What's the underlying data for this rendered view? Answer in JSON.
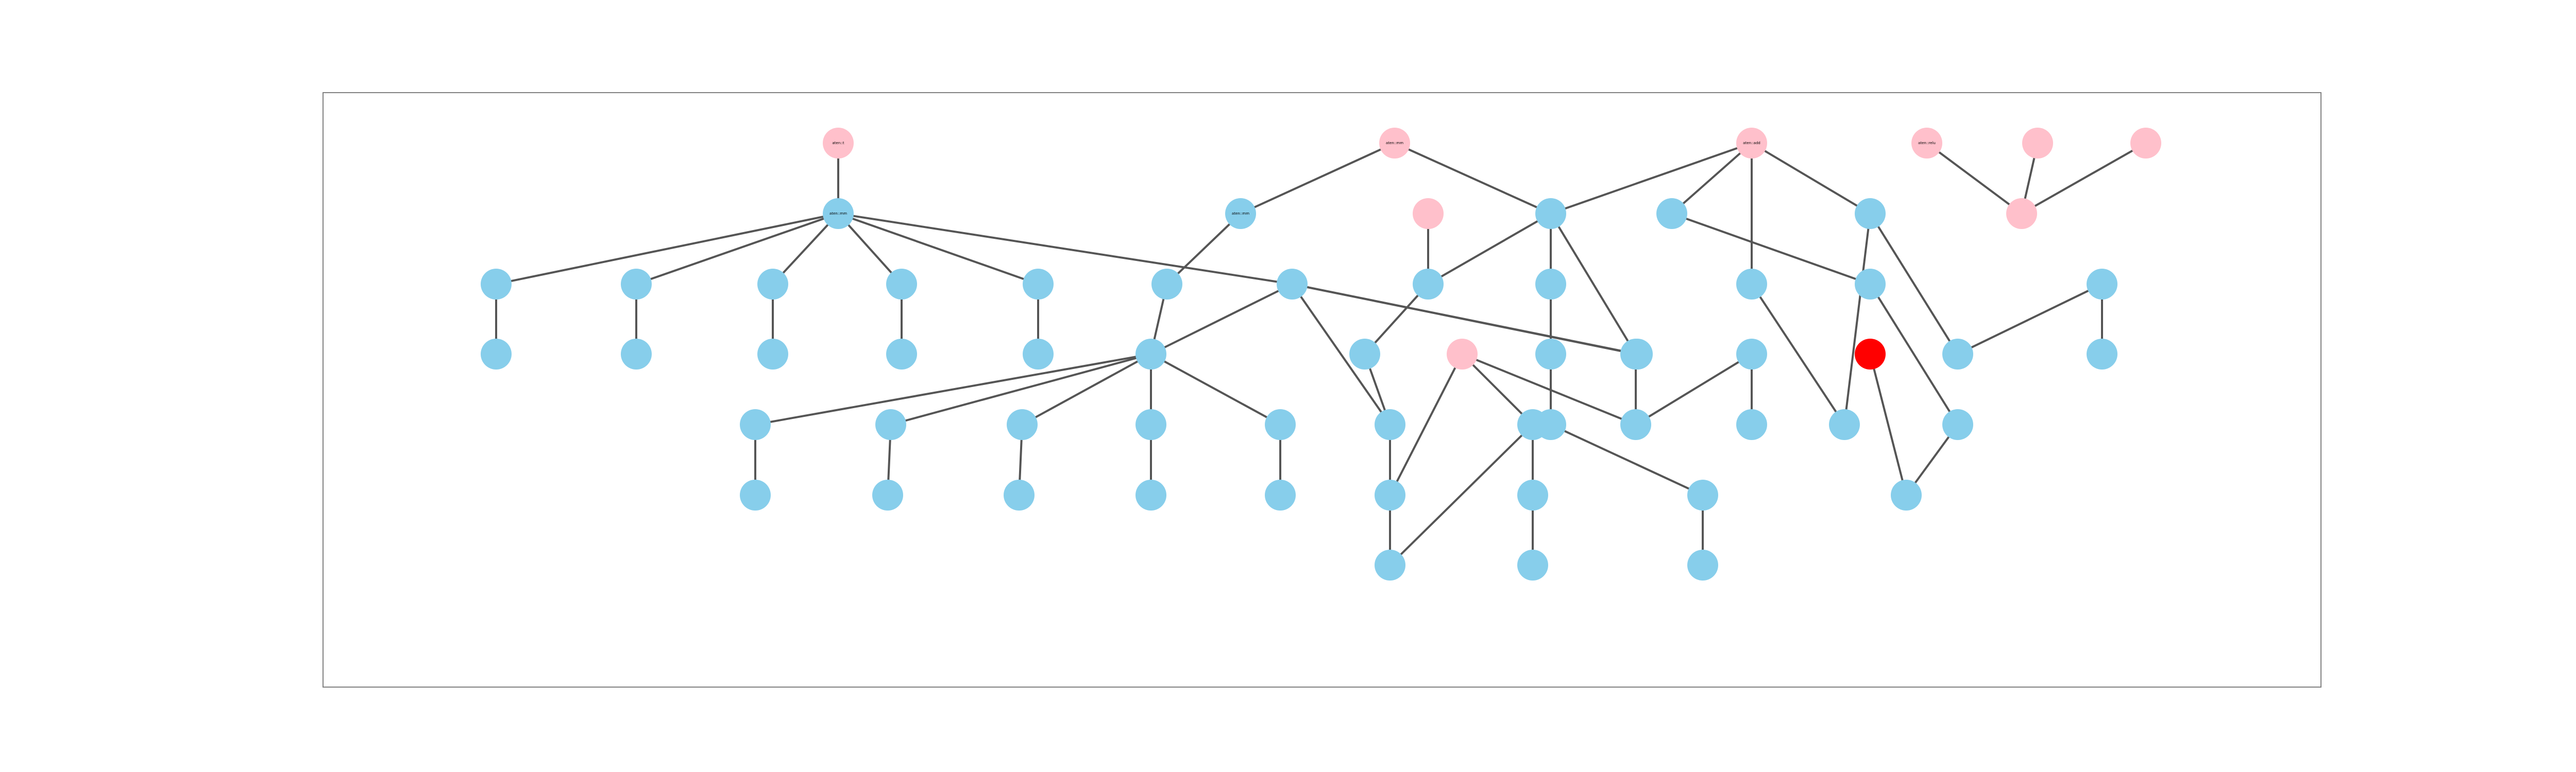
{
  "colors": {
    "default_node": "#87ceeb",
    "input_node": "#ffc0cb",
    "highlight_node": "#ff0000",
    "edge": "#555555",
    "frame": "#808080"
  },
  "nodes": [
    {
      "id": "n01",
      "label": "aten::t",
      "role": "input"
    },
    {
      "id": "n02",
      "label": "aten::mm",
      "role": "input"
    },
    {
      "id": "n03",
      "label": "aten::add",
      "role": "input"
    },
    {
      "id": "n04",
      "label": "",
      "role": "input"
    },
    {
      "id": "n05",
      "label": "aten::relu",
      "role": "input"
    },
    {
      "id": "n06",
      "label": "",
      "role": "input"
    },
    {
      "id": "n07",
      "label": "",
      "role": "input"
    },
    {
      "id": "n08",
      "label": "",
      "role": "input"
    },
    {
      "id": "n09",
      "label": "aten::mm",
      "role": "default"
    },
    {
      "id": "n10",
      "label": "aten::mm",
      "role": "default"
    },
    {
      "id": "n11",
      "label": "",
      "role": "default"
    },
    {
      "id": "n12",
      "label": "",
      "role": "default"
    },
    {
      "id": "n13",
      "label": "",
      "role": "default"
    },
    {
      "id": "n14",
      "label": "",
      "role": "default"
    },
    {
      "id": "n15",
      "label": "",
      "role": "default"
    },
    {
      "id": "n16",
      "label": "",
      "role": "default"
    },
    {
      "id": "n17",
      "label": "",
      "role": "default"
    },
    {
      "id": "n18",
      "label": "",
      "role": "default"
    },
    {
      "id": "n19",
      "label": "",
      "role": "default"
    },
    {
      "id": "n20",
      "label": "",
      "role": "default"
    },
    {
      "id": "n21",
      "label": "",
      "role": "default"
    },
    {
      "id": "n22",
      "label": "",
      "role": "default"
    },
    {
      "id": "n23",
      "label": "",
      "role": "default"
    },
    {
      "id": "n24",
      "label": "",
      "role": "default"
    },
    {
      "id": "n25",
      "label": "",
      "role": "default"
    },
    {
      "id": "n26",
      "label": "",
      "role": "default"
    },
    {
      "id": "n27",
      "label": "",
      "role": "default"
    },
    {
      "id": "n28",
      "label": "",
      "role": "default"
    },
    {
      "id": "n29",
      "label": "",
      "role": "default"
    },
    {
      "id": "n30",
      "label": "",
      "role": "default"
    },
    {
      "id": "n31",
      "label": "",
      "role": "default"
    },
    {
      "id": "n32",
      "label": "",
      "role": "default"
    },
    {
      "id": "n33",
      "label": "",
      "role": "default"
    },
    {
      "id": "n34",
      "label": "",
      "role": "default"
    },
    {
      "id": "n35",
      "label": "",
      "role": "default"
    },
    {
      "id": "n36",
      "label": "",
      "role": "default"
    },
    {
      "id": "n37",
      "label": "",
      "role": "default"
    },
    {
      "id": "n38",
      "label": "",
      "role": "default"
    },
    {
      "id": "n39",
      "label": "",
      "role": "default"
    },
    {
      "id": "n40",
      "label": "",
      "role": "input"
    },
    {
      "id": "n41",
      "label": "",
      "role": "default"
    },
    {
      "id": "n42",
      "label": "",
      "role": "default"
    },
    {
      "id": "n43",
      "label": "",
      "role": "default"
    },
    {
      "id": "n44",
      "label": "",
      "role": "default"
    },
    {
      "id": "n45",
      "label": "",
      "role": "default"
    },
    {
      "id": "n46",
      "label": "",
      "role": "default"
    },
    {
      "id": "n47",
      "label": "",
      "role": "default"
    },
    {
      "id": "n48",
      "label": "",
      "role": "default"
    },
    {
      "id": "n49",
      "label": "",
      "role": "default"
    },
    {
      "id": "n50",
      "label": "",
      "role": "default"
    },
    {
      "id": "n51",
      "label": "",
      "role": "highlight"
    },
    {
      "id": "n52",
      "label": "",
      "role": "default"
    },
    {
      "id": "n53",
      "label": "",
      "role": "default"
    },
    {
      "id": "n54",
      "label": "",
      "role": "default"
    },
    {
      "id": "n55",
      "label": "",
      "role": "default"
    },
    {
      "id": "n56",
      "label": "",
      "role": "default"
    },
    {
      "id": "n57",
      "label": "",
      "role": "default"
    },
    {
      "id": "n58",
      "label": "",
      "role": "default"
    },
    {
      "id": "n59",
      "label": "",
      "role": "default"
    },
    {
      "id": "n60",
      "label": "",
      "role": "default"
    },
    {
      "id": "n61",
      "label": "",
      "role": "default"
    },
    {
      "id": "n62",
      "label": "",
      "role": "default"
    },
    {
      "id": "n63",
      "label": "",
      "role": "default"
    },
    {
      "id": "n64",
      "label": "",
      "role": "default"
    },
    {
      "id": "n65",
      "label": "",
      "role": "default"
    }
  ],
  "edges": [
    [
      "n01",
      "n09"
    ],
    [
      "n09",
      "n11"
    ],
    [
      "n09",
      "n12"
    ],
    [
      "n09",
      "n13"
    ],
    [
      "n09",
      "n14"
    ],
    [
      "n09",
      "n15"
    ],
    [
      "n09",
      "n17"
    ],
    [
      "n11",
      "n18"
    ],
    [
      "n12",
      "n19"
    ],
    [
      "n13",
      "n20"
    ],
    [
      "n14",
      "n21"
    ],
    [
      "n15",
      "n22"
    ],
    [
      "n02",
      "n10"
    ],
    [
      "n02",
      "n26"
    ],
    [
      "n10",
      "n16"
    ],
    [
      "n16",
      "n24"
    ],
    [
      "n24",
      "n30"
    ],
    [
      "n24",
      "n31"
    ],
    [
      "n24",
      "n32"
    ],
    [
      "n24",
      "n33"
    ],
    [
      "n24",
      "n34"
    ],
    [
      "n24",
      "n17"
    ],
    [
      "n30",
      "n35"
    ],
    [
      "n31",
      "n36"
    ],
    [
      "n32",
      "n37"
    ],
    [
      "n33",
      "n38"
    ],
    [
      "n34",
      "n39"
    ],
    [
      "n17",
      "n43"
    ],
    [
      "n17",
      "n48"
    ],
    [
      "n17",
      "n50"
    ],
    [
      "n04",
      "n25"
    ],
    [
      "n25",
      "n42"
    ],
    [
      "n26",
      "n25"
    ],
    [
      "n26",
      "n27"
    ],
    [
      "n26",
      "n48"
    ],
    [
      "n42",
      "n43"
    ],
    [
      "n43",
      "n44"
    ],
    [
      "n44",
      "n45"
    ],
    [
      "n27",
      "n28"
    ],
    [
      "n28",
      "n29"
    ],
    [
      "n40",
      "n41"
    ],
    [
      "n40",
      "n44"
    ],
    [
      "n40",
      "n49"
    ],
    [
      "n41",
      "n45"
    ],
    [
      "n41",
      "n52"
    ],
    [
      "n52",
      "n53"
    ],
    [
      "n29",
      "n46"
    ],
    [
      "n46",
      "n47"
    ],
    [
      "n48",
      "n49"
    ],
    [
      "n49",
      "n56"
    ],
    [
      "n56",
      "n57"
    ],
    [
      "n03",
      "n26"
    ],
    [
      "n03",
      "n54"
    ],
    [
      "n03",
      "n55"
    ],
    [
      "n03",
      "n58"
    ],
    [
      "n54",
      "n59"
    ],
    [
      "n55",
      "n61"
    ],
    [
      "n58",
      "n61"
    ],
    [
      "n58",
      "n60"
    ],
    [
      "n59",
      "n62"
    ],
    [
      "n62",
      "n63"
    ],
    [
      "n51",
      "n63"
    ],
    [
      "n60",
      "n64"
    ],
    [
      "n64",
      "n65"
    ],
    [
      "n05",
      "n06"
    ],
    [
      "n06",
      "n07"
    ],
    [
      "n06",
      "n08"
    ]
  ]
}
